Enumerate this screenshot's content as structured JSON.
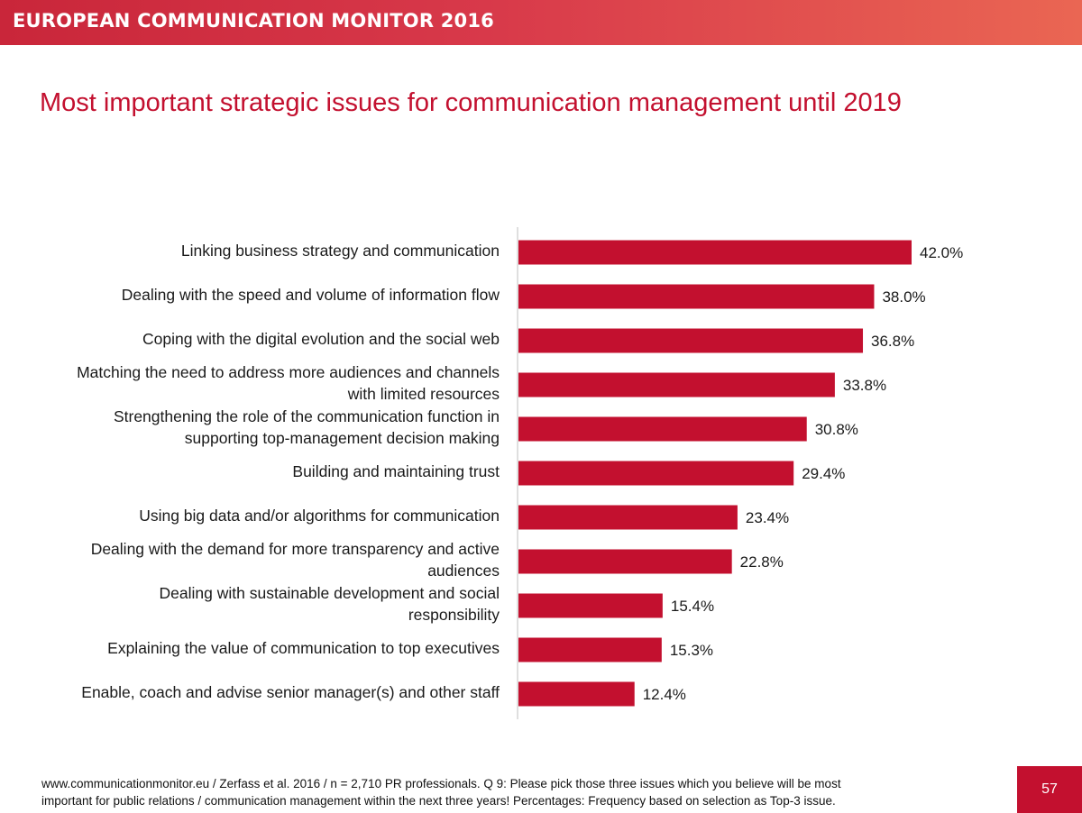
{
  "header": {
    "brand": "EUROPEAN COMMUNICATION MONITOR 2016"
  },
  "slide": {
    "title": "Most important strategic issues for communication management until 2019"
  },
  "chart_data": {
    "type": "bar",
    "orientation": "horizontal",
    "bar_color": "#c3102f",
    "categories": [
      "Linking business strategy and communication",
      "Dealing with the speed and volume of information flow",
      "Coping with the digital evolution and the social web",
      "Matching the need to address more audiences and channels with limited resources",
      "Strengthening the role of the communication function in supporting top-management decision making",
      "Building and maintaining trust",
      "Using big data and/or algorithms for communication",
      "Dealing with the demand for more transparency and active audiences",
      "Dealing with sustainable development and social responsibility",
      "Explaining the value of communication to top executives",
      "Enable, coach and advise senior manager(s) and other staff"
    ],
    "category_lines": [
      [
        "Linking business strategy and communication"
      ],
      [
        "Dealing with the speed and volume of information flow"
      ],
      [
        "Coping with the digital evolution and the social web"
      ],
      [
        "Matching the need to address more audiences and channels",
        "with limited resources"
      ],
      [
        "Strengthening the role of the communication function in",
        "supporting top-management decision making"
      ],
      [
        "Building and maintaining trust"
      ],
      [
        "Using big data and/or algorithms for communication"
      ],
      [
        "Dealing with the demand for more transparency and active",
        "audiences"
      ],
      [
        "Dealing with sustainable development and social",
        "responsibility"
      ],
      [
        "Explaining the value of communication to top executives"
      ],
      [
        "Enable, coach and advise senior manager(s) and other staff"
      ]
    ],
    "values": [
      42.0,
      38.0,
      36.8,
      33.8,
      30.8,
      29.4,
      23.4,
      22.8,
      15.4,
      15.3,
      12.4
    ],
    "value_labels": [
      "42.0%",
      "38.0%",
      "36.8%",
      "33.8%",
      "30.8%",
      "29.4%",
      "23.4%",
      "22.8%",
      "15.4%",
      "15.3%",
      "12.4%"
    ],
    "xlim": [
      0,
      42.0
    ],
    "grid": false
  },
  "footer": {
    "line1": "www.communicationmonitor.eu / Zerfass et al. 2016 / n = 2,710 PR professionals. Q 9: Please pick those three issues which you believe will be most",
    "line2": "important for public relations / communication management within the next three years! Percentages: Frequency based on selection as Top-3 issue.",
    "page_number": "57"
  }
}
